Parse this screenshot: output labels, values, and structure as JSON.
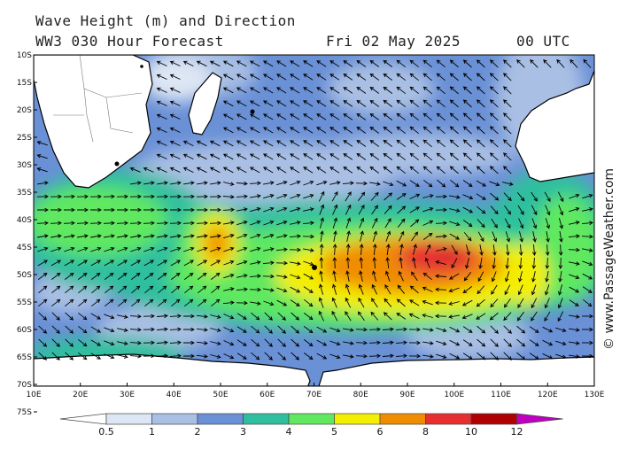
{
  "header": {
    "title": "Wave Height (m) and Direction",
    "model": "WW3 030 Hour Forecast",
    "date": "Fri 02 May 2025",
    "time": "00 UTC"
  },
  "watermark": "© www.PassageWeather.com",
  "map": {
    "lat_labels": [
      "10S",
      "15S",
      "20S",
      "25S",
      "30S",
      "35S",
      "40S",
      "45S",
      "50S",
      "55S",
      "60S",
      "65S",
      "70S",
      "75S"
    ],
    "lon_labels": [
      "10E",
      "20E",
      "30E",
      "40E",
      "50E",
      "60E",
      "70E",
      "80E",
      "90E",
      "100E",
      "110E",
      "120E",
      "130E"
    ]
  },
  "colorbar": {
    "labels": [
      "0.5",
      "1",
      "2",
      "3",
      "4",
      "5",
      "6",
      "8",
      "10",
      "12"
    ],
    "colors": [
      "#ffffff",
      "#dde6f4",
      "#a9bfe4",
      "#6a90d6",
      "#2fbf9f",
      "#5fe860",
      "#f4ee00",
      "#f08c00",
      "#e63030",
      "#b00000",
      "#c000c0"
    ]
  }
}
